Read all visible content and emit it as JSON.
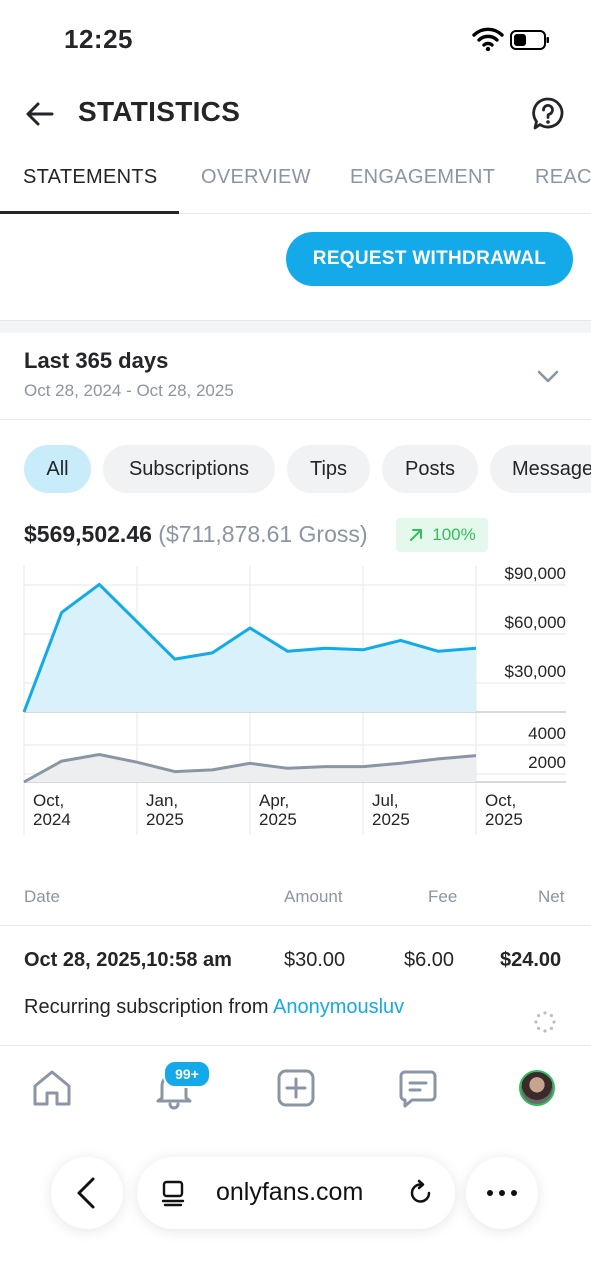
{
  "status_bar": {
    "time": "12:25"
  },
  "header": {
    "title": "STATISTICS"
  },
  "tabs": [
    {
      "label": "STATEMENTS",
      "active": true
    },
    {
      "label": "OVERVIEW",
      "active": false
    },
    {
      "label": "ENGAGEMENT",
      "active": false
    },
    {
      "label": "REACH",
      "active": false
    }
  ],
  "withdraw_label": "REQUEST WITHDRAWAL",
  "period": {
    "title": "Last 365 days",
    "range": "Oct 28, 2024 - Oct 28, 2025"
  },
  "filters": [
    {
      "label": "All",
      "active": true
    },
    {
      "label": "Subscriptions",
      "active": false
    },
    {
      "label": "Tips",
      "active": false
    },
    {
      "label": "Posts",
      "active": false
    },
    {
      "label": "Messages",
      "active": false
    }
  ],
  "summary": {
    "net": "$569,502.46",
    "gross": "($711,878.61 Gross)",
    "change": "100%"
  },
  "chart_data": [
    {
      "type": "area",
      "x": [
        "Oct 2024",
        "Nov 2024",
        "Dec 2024",
        "Jan 2025",
        "Feb 2025",
        "Mar 2025",
        "Apr 2025",
        "May 2025",
        "Jun 2025",
        "Jul 2025",
        "Aug 2025",
        "Sep 2025",
        "Oct 2025"
      ],
      "values": [
        0,
        64000,
        82000,
        58000,
        34000,
        38000,
        54000,
        39000,
        41000,
        40000,
        46000,
        39000,
        41000
      ],
      "y_ticks": [
        "$90,000",
        "$60,000",
        "$30,000"
      ],
      "ylim": [
        0,
        90000
      ],
      "color": "#14a9e8",
      "fill": "#d9f1fb"
    },
    {
      "type": "area",
      "x": [
        "Oct 2024",
        "Nov 2024",
        "Dec 2024",
        "Jan 2025",
        "Feb 2025",
        "Mar 2025",
        "Apr 2025",
        "May 2025",
        "Jun 2025",
        "Jul 2025",
        "Aug 2025",
        "Sep 2025",
        "Oct 2025"
      ],
      "values": [
        0,
        1900,
        2500,
        1800,
        950,
        1100,
        1700,
        1250,
        1400,
        1400,
        1700,
        2100,
        2400
      ],
      "y_ticks": [
        "4000",
        "2000"
      ],
      "ylim": [
        0,
        4000
      ],
      "color": "#8a96a3",
      "fill": "#eceef0"
    }
  ],
  "x_axis_labels": [
    {
      "month": "Oct,",
      "year": "2024"
    },
    {
      "month": "Jan,",
      "year": "2025"
    },
    {
      "month": "Apr,",
      "year": "2025"
    },
    {
      "month": "Jul,",
      "year": "2025"
    },
    {
      "month": "Oct,",
      "year": "2025"
    }
  ],
  "table": {
    "headers": {
      "date": "Date",
      "amount": "Amount",
      "fee": "Fee",
      "net": "Net"
    },
    "row": {
      "date": "Oct 28, 2025,10:58 am",
      "amount": "$30.00",
      "fee": "$6.00",
      "net": "$24.00",
      "desc_prefix": "Recurring subscription from ",
      "desc_user": "Anonymousluv"
    }
  },
  "nav": {
    "badge": "99+"
  },
  "browser": {
    "url": "onlyfans.com"
  },
  "colors": {
    "accent": "#14a9e8",
    "positive": "#2fbf5d",
    "muted": "#8a96a3"
  }
}
